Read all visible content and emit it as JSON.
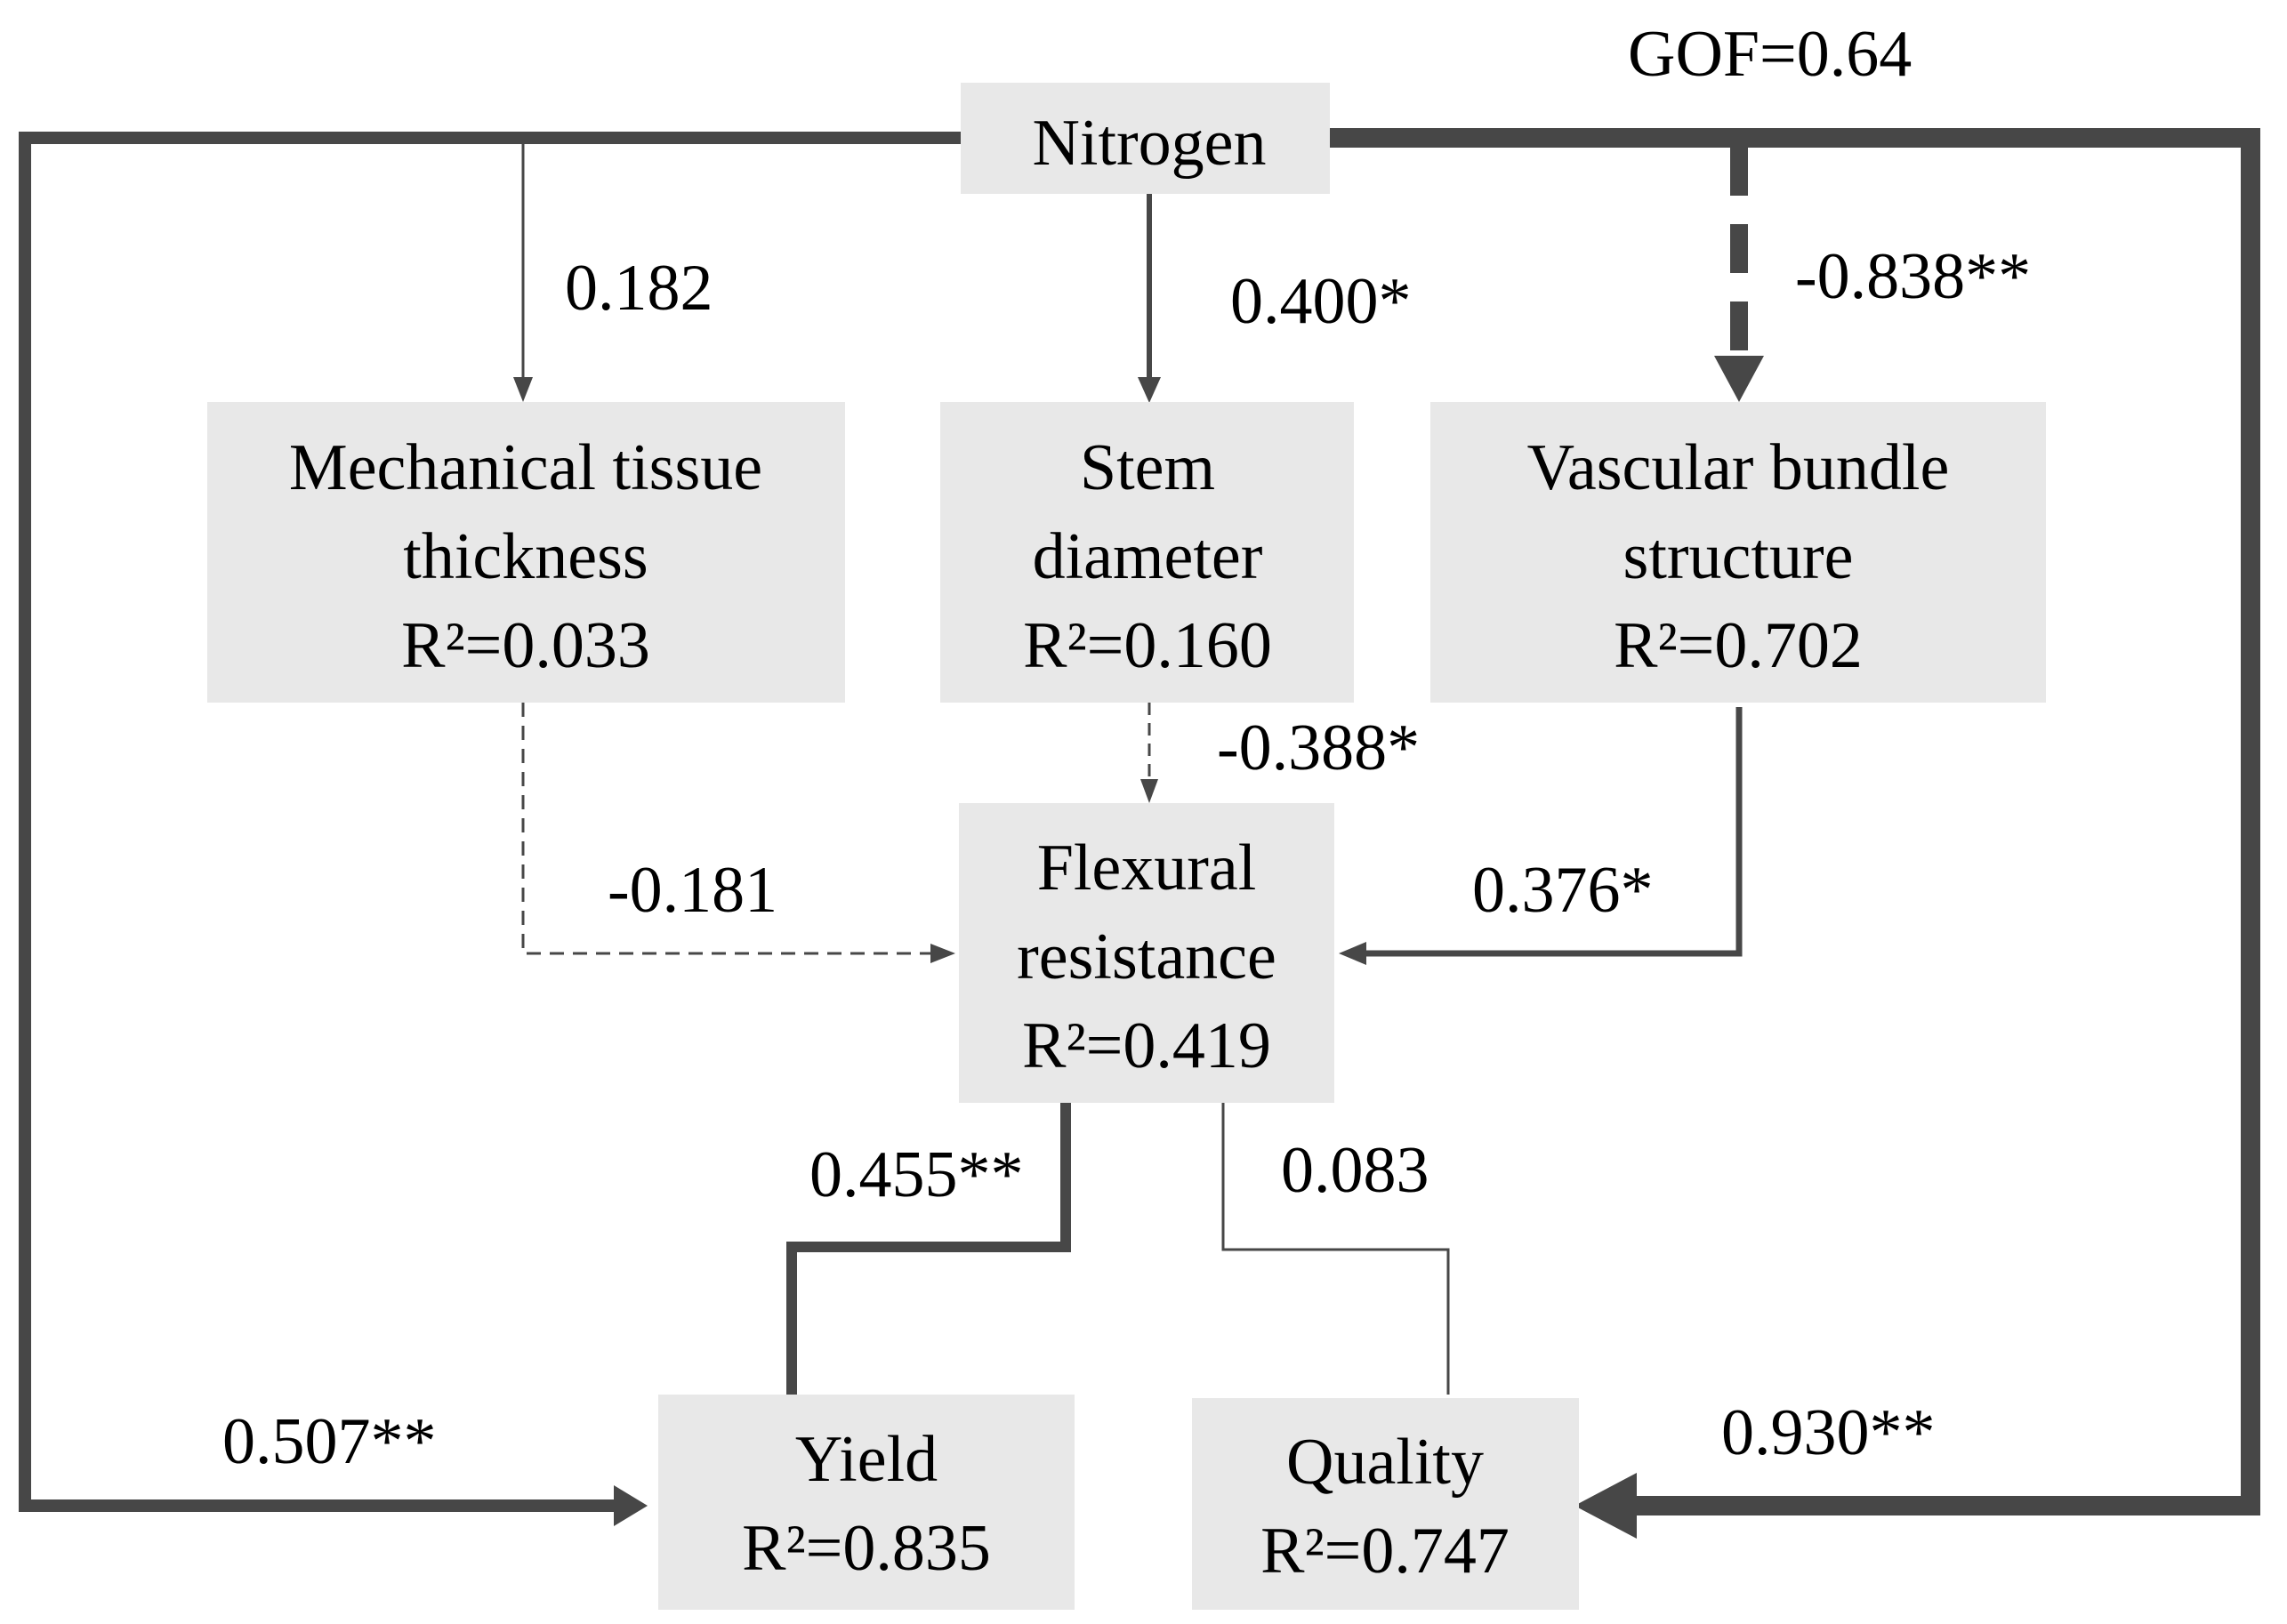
{
  "gof": "GOF=0.64",
  "nodes": {
    "nitrogen": {
      "lines": [
        "Nitrogen"
      ]
    },
    "mechanical": {
      "lines": [
        "Mechanical tissue",
        "thickness",
        "R²=0.033"
      ]
    },
    "stem": {
      "lines": [
        "Stem",
        "diameter",
        "R²=0.160"
      ]
    },
    "vascular": {
      "lines": [
        "Vascular bundle",
        "structure",
        "R²=0.702"
      ]
    },
    "flexural": {
      "lines": [
        "Flexural",
        "resistance",
        "R²=0.419"
      ]
    },
    "yield": {
      "lines": [
        "Yield",
        "R²=0.835"
      ]
    },
    "quality": {
      "lines": [
        "Quality",
        "R²=0.747"
      ]
    }
  },
  "paths": {
    "nitrogen_to_mechanical": {
      "label": "0.182",
      "coefficient": 0.182,
      "significance": "",
      "line_style": "solid"
    },
    "nitrogen_to_stem": {
      "label": "0.400*",
      "coefficient": 0.4,
      "significance": "*",
      "line_style": "solid"
    },
    "nitrogen_to_vascular": {
      "label": "-0.838**",
      "coefficient": -0.838,
      "significance": "**",
      "line_style": "dashed"
    },
    "stem_to_flexural": {
      "label": "-0.388*",
      "coefficient": -0.388,
      "significance": "*",
      "line_style": "dashed"
    },
    "mechanical_to_flexural": {
      "label": "-0.181",
      "coefficient": -0.181,
      "significance": "",
      "line_style": "dashed"
    },
    "vascular_to_flexural": {
      "label": "0.376*",
      "coefficient": 0.376,
      "significance": "*",
      "line_style": "solid"
    },
    "flexural_to_yield": {
      "label": "0.455**",
      "coefficient": 0.455,
      "significance": "**",
      "line_style": "solid"
    },
    "flexural_to_quality": {
      "label": "0.083",
      "coefficient": 0.083,
      "significance": "",
      "line_style": "solid"
    },
    "nitrogen_to_yield": {
      "label": "0.507**",
      "coefficient": 0.507,
      "significance": "**",
      "line_style": "solid"
    },
    "nitrogen_to_quality": {
      "label": "0.930**",
      "coefficient": 0.93,
      "significance": "**",
      "line_style": "solid"
    }
  },
  "colors": {
    "box_fill": "#e8e8e8",
    "line": "#474747",
    "text": "#000000"
  }
}
